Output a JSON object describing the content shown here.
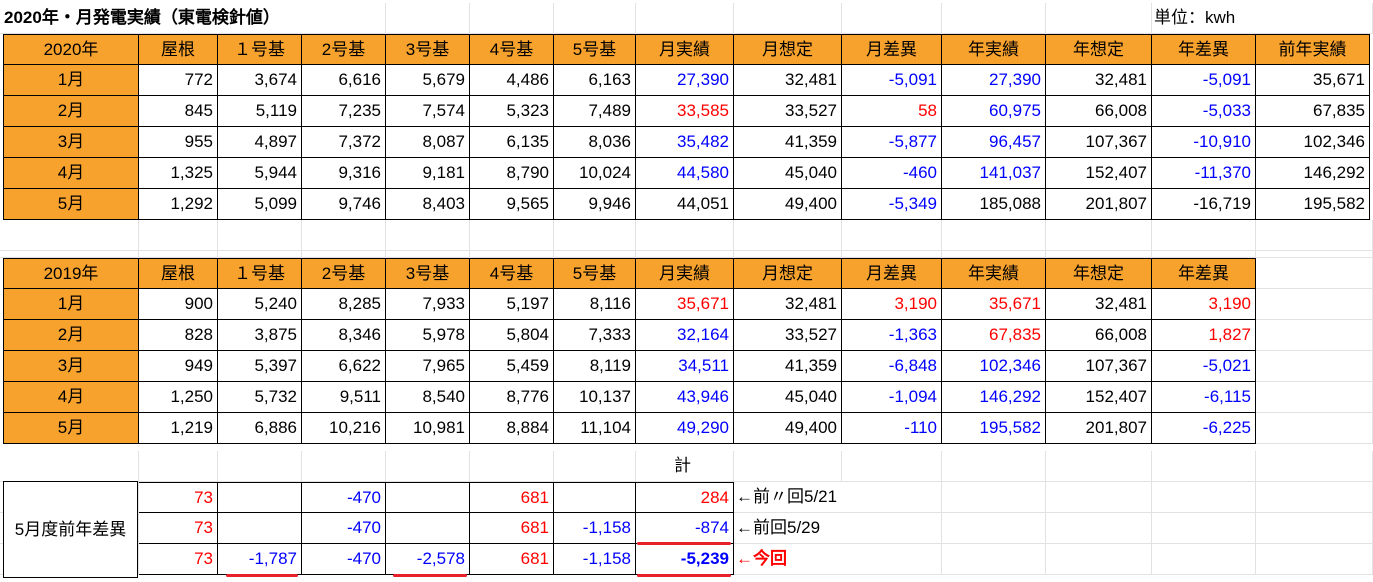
{
  "title": "2020年・月発電実績（東電検針値）",
  "unit_label": "単位：kwh",
  "t2020": {
    "header": [
      "2020年",
      "屋根",
      "１号基",
      "2号基",
      "3号基",
      "4号基",
      "5号基",
      "月実績",
      "月想定",
      "月差異",
      "年実績",
      "年想定",
      "年差異",
      "前年実績"
    ],
    "rows": [
      [
        "1月",
        "772",
        "3,674",
        "6,616",
        "5,679",
        "4,486",
        "6,163",
        "27,390",
        "32,481",
        "-5,091",
        "27,390",
        "32,481",
        "-5,091",
        "35,671"
      ],
      [
        "2月",
        "845",
        "5,119",
        "7,235",
        "7,574",
        "5,323",
        "7,489",
        "33,585",
        "33,527",
        "58",
        "60,975",
        "66,008",
        "-5,033",
        "67,835"
      ],
      [
        "3月",
        "955",
        "4,897",
        "7,372",
        "8,087",
        "6,135",
        "8,036",
        "35,482",
        "41,359",
        "-5,877",
        "96,457",
        "107,367",
        "-10,910",
        "102,346"
      ],
      [
        "4月",
        "1,325",
        "5,944",
        "9,316",
        "9,181",
        "8,790",
        "10,024",
        "44,580",
        "45,040",
        "-460",
        "141,037",
        "152,407",
        "-11,370",
        "146,292"
      ],
      [
        "5月",
        "1,292",
        "5,099",
        "9,746",
        "8,403",
        "9,565",
        "9,946",
        "44,051",
        "49,400",
        "-5,349",
        "185,088",
        "201,807",
        "-16,719",
        "195,582"
      ]
    ],
    "colors": [
      [
        "",
        "",
        "",
        "",
        "",
        "",
        "",
        "blue",
        "",
        "blue",
        "blue",
        "",
        "blue",
        ""
      ],
      [
        "",
        "",
        "",
        "",
        "",
        "",
        "",
        "red",
        "",
        "red",
        "blue",
        "",
        "blue",
        ""
      ],
      [
        "",
        "",
        "",
        "",
        "",
        "",
        "",
        "blue",
        "",
        "blue",
        "blue",
        "",
        "blue",
        ""
      ],
      [
        "",
        "",
        "",
        "",
        "",
        "",
        "",
        "blue",
        "",
        "blue",
        "blue",
        "",
        "blue",
        ""
      ],
      [
        "",
        "",
        "",
        "",
        "",
        "",
        "",
        "",
        "",
        "blue",
        "",
        "",
        "",
        ""
      ]
    ]
  },
  "t2019": {
    "header": [
      "2019年",
      "屋根",
      "１号基",
      "2号基",
      "3号基",
      "4号基",
      "5号基",
      "月実績",
      "月想定",
      "月差異",
      "年実績",
      "年想定",
      "年差異"
    ],
    "rows": [
      [
        "1月",
        "900",
        "5,240",
        "8,285",
        "7,933",
        "5,197",
        "8,116",
        "35,671",
        "32,481",
        "3,190",
        "35,671",
        "32,481",
        "3,190"
      ],
      [
        "2月",
        "828",
        "3,875",
        "8,346",
        "5,978",
        "5,804",
        "7,333",
        "32,164",
        "33,527",
        "-1,363",
        "67,835",
        "66,008",
        "1,827"
      ],
      [
        "3月",
        "949",
        "5,397",
        "6,622",
        "7,965",
        "5,459",
        "8,119",
        "34,511",
        "41,359",
        "-6,848",
        "102,346",
        "107,367",
        "-5,021"
      ],
      [
        "4月",
        "1,250",
        "5,732",
        "9,511",
        "8,540",
        "8,776",
        "10,137",
        "43,946",
        "45,040",
        "-1,094",
        "146,292",
        "152,407",
        "-6,115"
      ],
      [
        "5月",
        "1,219",
        "6,886",
        "10,216",
        "10,981",
        "8,884",
        "11,104",
        "49,290",
        "49,400",
        "-110",
        "195,582",
        "201,807",
        "-6,225"
      ]
    ],
    "colors": [
      [
        "",
        "",
        "",
        "",
        "",
        "",
        "",
        "red",
        "",
        "red",
        "red",
        "",
        "red"
      ],
      [
        "",
        "",
        "",
        "",
        "",
        "",
        "",
        "blue",
        "",
        "blue",
        "red",
        "",
        "red"
      ],
      [
        "",
        "",
        "",
        "",
        "",
        "",
        "",
        "blue",
        "",
        "blue",
        "blue",
        "",
        "blue"
      ],
      [
        "",
        "",
        "",
        "",
        "",
        "",
        "",
        "blue",
        "",
        "blue",
        "blue",
        "",
        "blue"
      ],
      [
        "",
        "",
        "",
        "",
        "",
        "",
        "",
        "blue",
        "",
        "blue",
        "blue",
        "",
        "blue"
      ]
    ]
  },
  "total_label": "計",
  "may_label": "5月度前年差異",
  "may_rows": [
    {
      "values": [
        "73",
        "",
        "-470",
        "",
        "681",
        "",
        "284"
      ],
      "colors": [
        "red",
        "",
        "blue",
        "",
        "red",
        "",
        "red"
      ],
      "note": "←前〃回5/21",
      "note_color": "",
      "total_bold": false
    },
    {
      "values": [
        "73",
        "",
        "-470",
        "",
        "681",
        "-1,158",
        "-874"
      ],
      "colors": [
        "red",
        "",
        "blue",
        "",
        "red",
        "blue",
        "blue"
      ],
      "note": "←前回5/29",
      "note_color": "",
      "total_bold": false
    },
    {
      "values": [
        "73",
        "-1,787",
        "-470",
        "-2,578",
        "681",
        "-1,158",
        "-5,239"
      ],
      "colors": [
        "red",
        "blue",
        "blue",
        "blue",
        "red",
        "blue",
        "blue"
      ],
      "note": "←今回",
      "note_color": "red",
      "total_bold": true
    }
  ]
}
